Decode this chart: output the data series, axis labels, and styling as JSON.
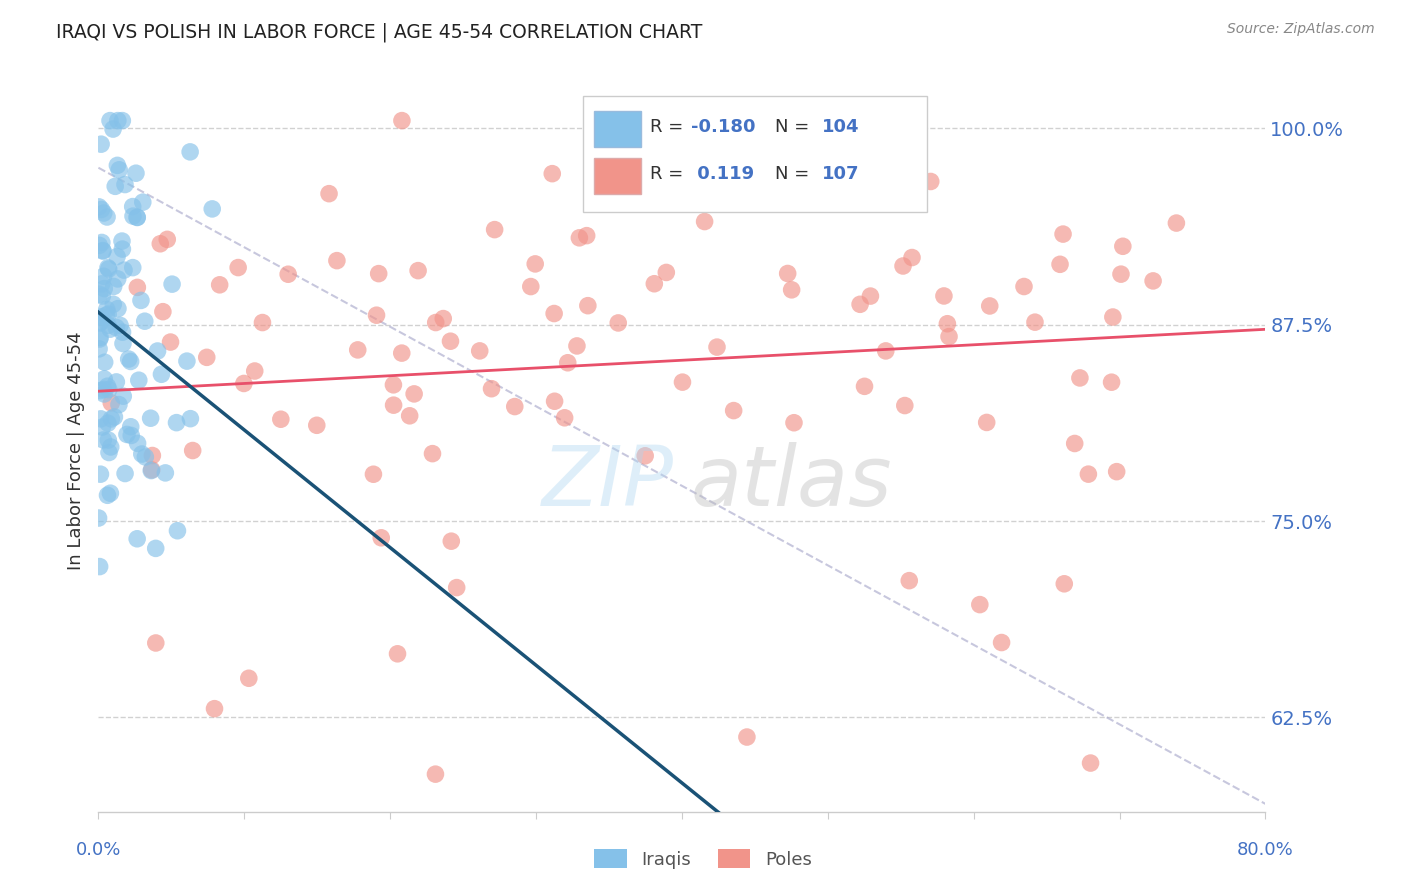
{
  "title": "IRAQI VS POLISH IN LABOR FORCE | AGE 45-54 CORRELATION CHART",
  "source": "Source: ZipAtlas.com",
  "ylabel": "In Labor Force | Age 45-54",
  "xmin": 0.0,
  "xmax": 0.8,
  "ymin": 0.565,
  "ymax": 1.025,
  "yticks": [
    0.625,
    0.75,
    0.875,
    1.0
  ],
  "ytick_labels": [
    "62.5%",
    "75.0%",
    "87.5%",
    "100.0%"
  ],
  "xtick_left_label": "0.0%",
  "xtick_right_label": "80.0%",
  "blue_R": -0.18,
  "blue_N": 104,
  "pink_R": 0.119,
  "pink_N": 107,
  "legend_label_blue": "Iraqis",
  "legend_label_pink": "Poles",
  "dot_color_blue": "#85C1E9",
  "dot_color_pink": "#F1948A",
  "line_color_blue": "#1A5276",
  "line_color_pink": "#E8506A",
  "bg_color": "#FFFFFF",
  "title_color": "#222222",
  "ytick_color": "#4472C4",
  "source_color": "#888888",
  "grid_color": "#CCCCCC",
  "watermark_zip_color": "#AED6F1",
  "watermark_atlas_color": "#BBBBBB",
  "blue_seed": 42,
  "pink_seed": 77
}
